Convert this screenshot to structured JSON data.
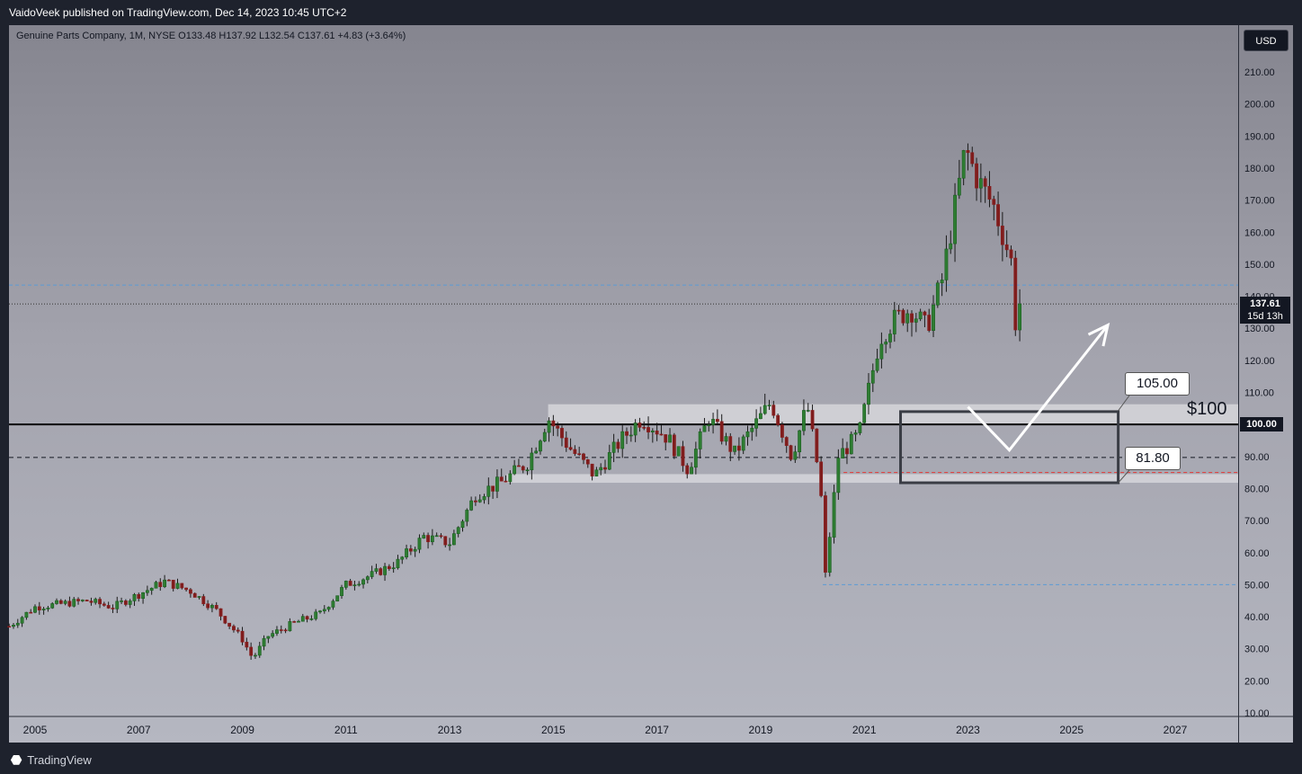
{
  "header": {
    "published": "VaidoVeek published on TradingView.com, Dec 14, 2023 10:45 UTC+2"
  },
  "legend": {
    "text": "Genuine Parts Company, 1M, NYSE  O133.48  H137.92  L132.54  C137.61  +4.83 (+3.64%)"
  },
  "currency": "USD",
  "price_label": {
    "price": "137.61",
    "countdown": "15d 13h"
  },
  "level_label": "100.00",
  "annotations": {
    "dollar_level": "$100",
    "callout_upper": "105.00",
    "callout_lower": "81.80"
  },
  "footer": {
    "brand": "TradingView"
  },
  "colors": {
    "up": "#26a69a",
    "down": "#ef5350",
    "background_top": "#85858f",
    "background_bottom": "#b5b7c1",
    "zone": "#d6d6da"
  },
  "chart_data": {
    "type": "candlestick",
    "interval": "1M",
    "x_range": [
      2004.4,
      2028.2
    ],
    "ylim": [
      10,
      222
    ],
    "y_ticks": [
      10,
      20,
      30,
      40,
      50,
      60,
      70,
      80,
      90,
      100,
      110,
      120,
      130,
      140,
      150,
      160,
      170,
      180,
      190,
      200,
      210
    ],
    "x_ticks": [
      "2005",
      "2007",
      "2009",
      "2011",
      "2013",
      "2015",
      "2017",
      "2019",
      "2021",
      "2023",
      "2025",
      "2027"
    ],
    "price_path": [
      [
        2004.5,
        37
      ],
      [
        2005.0,
        43
      ],
      [
        2005.5,
        44
      ],
      [
        2006.0,
        45
      ],
      [
        2006.5,
        43
      ],
      [
        2007.0,
        47
      ],
      [
        2007.5,
        51
      ],
      [
        2008.0,
        48
      ],
      [
        2008.5,
        42
      ],
      [
        2009.0,
        33
      ],
      [
        2009.2,
        27
      ],
      [
        2009.5,
        34
      ],
      [
        2010.0,
        38
      ],
      [
        2010.5,
        41
      ],
      [
        2011.0,
        50
      ],
      [
        2011.5,
        53
      ],
      [
        2012.0,
        57
      ],
      [
        2012.5,
        65
      ],
      [
        2013.0,
        63
      ],
      [
        2013.5,
        78
      ],
      [
        2014.0,
        82
      ],
      [
        2014.5,
        88
      ],
      [
        2014.9,
        102
      ],
      [
        2015.3,
        93
      ],
      [
        2015.8,
        84
      ],
      [
        2016.3,
        95
      ],
      [
        2016.7,
        102
      ],
      [
        2017.2,
        96
      ],
      [
        2017.6,
        86
      ],
      [
        2018.0,
        102
      ],
      [
        2018.5,
        91
      ],
      [
        2018.9,
        100
      ],
      [
        2019.2,
        107
      ],
      [
        2019.6,
        90
      ],
      [
        2019.9,
        106
      ],
      [
        2020.15,
        82
      ],
      [
        2020.25,
        53
      ],
      [
        2020.5,
        90
      ],
      [
        2020.9,
        97
      ],
      [
        2021.3,
        127
      ],
      [
        2021.6,
        133
      ],
      [
        2021.9,
        136
      ],
      [
        2022.2,
        130
      ],
      [
        2022.5,
        145
      ],
      [
        2022.8,
        172
      ],
      [
        2022.95,
        186
      ],
      [
        2023.2,
        176
      ],
      [
        2023.5,
        168
      ],
      [
        2023.7,
        158
      ],
      [
        2023.85,
        150
      ],
      [
        2023.92,
        131
      ],
      [
        2024.0,
        137.61
      ]
    ],
    "levels": {
      "resistance_100": 100,
      "line_90": 89.7,
      "red_line": 85,
      "blue_upper": 143.5,
      "blue_lower": 50,
      "last_price": 137.61
    },
    "zones": [
      {
        "from": 2014.9,
        "to": 2028.2,
        "low": 100.2,
        "high": 106.3
      },
      {
        "from": 2014.1,
        "to": 2028.2,
        "low": 81.8,
        "high": 84.5
      }
    ],
    "box": {
      "from": 2021.7,
      "to": 2025.9,
      "low": 81.8,
      "high": 104
    },
    "projection": [
      [
        2023.0,
        105.5
      ],
      [
        2023.8,
        92
      ],
      [
        2025.7,
        131
      ]
    ]
  }
}
